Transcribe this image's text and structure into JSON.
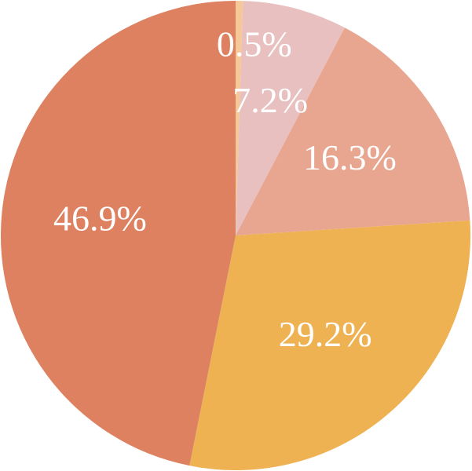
{
  "chart_data": {
    "type": "pie",
    "values": [
      0.5,
      7.2,
      16.3,
      29.2,
      46.9
    ],
    "value_labels": [
      "0.5%",
      "7.2%",
      "16.3%",
      "29.2%",
      "46.9%"
    ],
    "colors": [
      "#f6c897",
      "#e8c0c0",
      "#e8a690",
      "#eeb253",
      "#dd8161"
    ]
  }
}
